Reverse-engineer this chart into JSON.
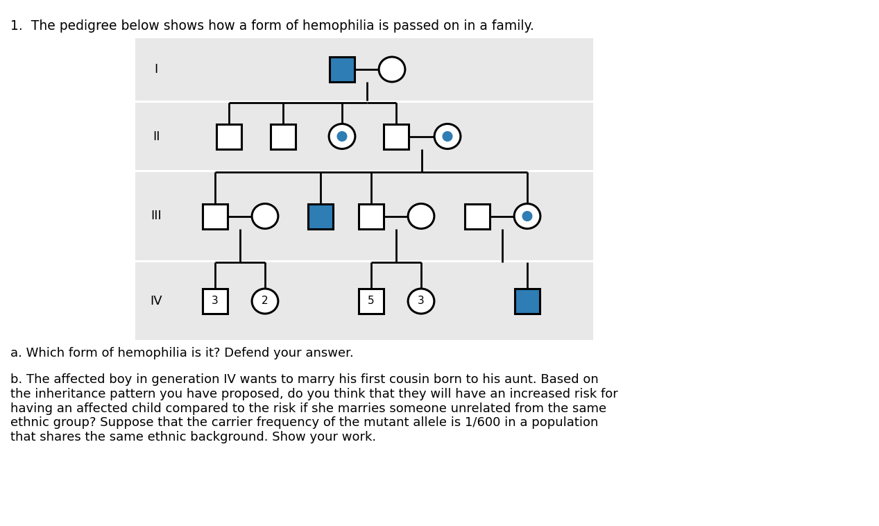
{
  "title": "1.  The pedigree below shows how a form of hemophilia is passed on in a family.",
  "question_a": "a. Which form of hemophilia is it? Defend your answer.",
  "question_b": "b. The affected boy in generation IV wants to marry his first cousin born to his aunt. Based on\nthe inheritance pattern you have proposed, do you think that they will have an increased risk for\nhaving an affected child compared to the risk if she marries someone unrelated from the same\nethnic group? Suppose that the carrier frequency of the mutant allele is 1/600 in a population\nthat shares the same ethnic background. Show your work.",
  "bg_color": "#ffffff",
  "pedigree_bg": "#e8e8e8",
  "affected_color": "#2e7db5",
  "unaffected_color": "#ffffff",
  "carrier_dot_color": "#2e7db5",
  "line_color": "#000000"
}
